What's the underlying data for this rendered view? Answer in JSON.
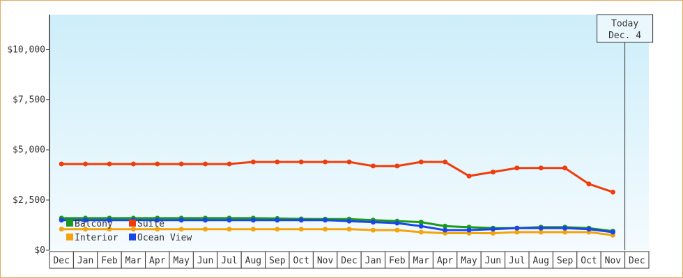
{
  "chart_data": {
    "type": "line",
    "categories": [
      "Dec",
      "Jan",
      "Feb",
      "Mar",
      "Apr",
      "May",
      "Jun",
      "Jul",
      "Aug",
      "Sep",
      "Oct",
      "Nov",
      "Dec",
      "Jan",
      "Feb",
      "Mar",
      "Apr",
      "May",
      "Jun",
      "Jul",
      "Aug",
      "Sep",
      "Oct",
      "Nov",
      "Dec"
    ],
    "series": [
      {
        "name": "Balcony",
        "color": "#1a9a1a",
        "values": [
          1600,
          1600,
          1600,
          1600,
          1600,
          1600,
          1600,
          1600,
          1600,
          1580,
          1560,
          1550,
          1550,
          1500,
          1450,
          1400,
          1200,
          1150,
          1100,
          1100,
          1150,
          1150,
          1100,
          950,
          null
        ]
      },
      {
        "name": "Suite",
        "color": "#f03c0a",
        "values": [
          4300,
          4300,
          4300,
          4300,
          4300,
          4300,
          4300,
          4300,
          4400,
          4400,
          4400,
          4400,
          4400,
          4200,
          4200,
          4400,
          4400,
          3700,
          3900,
          4100,
          4100,
          4100,
          3300,
          2900,
          null
        ]
      },
      {
        "name": "Interior",
        "color": "#f5a30a",
        "values": [
          1050,
          1050,
          1050,
          1050,
          1050,
          1050,
          1050,
          1050,
          1050,
          1050,
          1050,
          1050,
          1050,
          1000,
          1000,
          900,
          850,
          850,
          850,
          900,
          900,
          900,
          900,
          750,
          null
        ]
      },
      {
        "name": "Ocean View",
        "color": "#1a46e8",
        "values": [
          1500,
          1500,
          1500,
          1500,
          1500,
          1500,
          1500,
          1500,
          1500,
          1500,
          1500,
          1500,
          1450,
          1400,
          1350,
          1200,
          1000,
          1000,
          1050,
          1100,
          1100,
          1100,
          1050,
          900,
          null
        ]
      }
    ],
    "ylim": [
      0,
      11750
    ],
    "yticks": [
      {
        "value": 0,
        "label": "$0"
      },
      {
        "value": 2500,
        "label": "$2,500"
      },
      {
        "value": 5000,
        "label": "$5,000"
      },
      {
        "value": 7500,
        "label": "$7,500"
      },
      {
        "value": 10000,
        "label": "$10,000"
      }
    ],
    "annotation": [
      "Today",
      "Dec. 4"
    ],
    "legend": "lower left"
  }
}
